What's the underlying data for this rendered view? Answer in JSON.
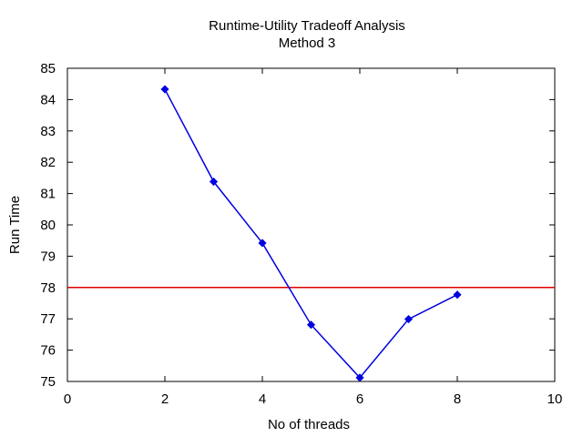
{
  "chart_data": {
    "type": "line",
    "title": "Runtime-Utility Tradeoff Analysis",
    "subtitle": "Method 3",
    "xlabel": "No of threads",
    "ylabel": "Run Time",
    "xlim": [
      0,
      10
    ],
    "ylim": [
      75,
      85
    ],
    "xticks": [
      0,
      2,
      4,
      6,
      8,
      10
    ],
    "yticks": [
      75,
      76,
      77,
      78,
      79,
      80,
      81,
      82,
      83,
      84,
      85
    ],
    "grid": false,
    "legend": "none",
    "series": [
      {
        "x": [
          2,
          3,
          4,
          5,
          6,
          7,
          8
        ],
        "y": [
          84.33,
          81.38,
          79.42,
          76.81,
          75.12,
          76.99,
          77.77
        ],
        "color": "#0000e0",
        "marker": "diamond"
      }
    ],
    "reference_lines": [
      {
        "orientation": "horizontal",
        "y": 78,
        "color": "#e00000"
      }
    ]
  }
}
